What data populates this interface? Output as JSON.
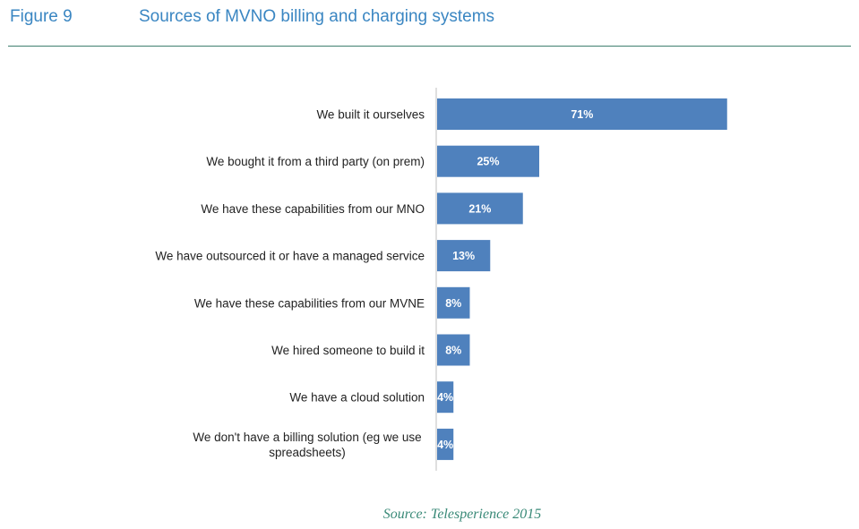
{
  "header": {
    "figure_label": "Figure 9",
    "title": "Sources of MVNO billing and charging systems"
  },
  "chart_data": {
    "type": "bar",
    "orientation": "horizontal",
    "title": "Sources of MVNO billing and charging systems",
    "categories": [
      "We built it ourselves",
      "We bought it from a third party (on prem)",
      "We have these capabilities from our MNO",
      "We have outsourced it or have a managed service",
      "We have these capabilities from our MVNE",
      "We hired someone to build it",
      "We have a cloud solution",
      "We don't have a billing solution (eg we use spreadsheets)"
    ],
    "category_lines": [
      [
        "We built it ourselves"
      ],
      [
        "We bought it from a third party (on prem)"
      ],
      [
        "We have these capabilities from our MNO"
      ],
      [
        "We have outsourced it or have a managed service"
      ],
      [
        "We have these capabilities from our MVNE"
      ],
      [
        "We hired someone to build it"
      ],
      [
        "We have a cloud solution"
      ],
      [
        "We don't have a billing solution (eg we use",
        "spreadsheets)"
      ]
    ],
    "values": [
      71,
      25,
      21,
      13,
      8,
      8,
      4,
      4
    ],
    "data_labels": [
      "71%",
      "25%",
      "21%",
      "13%",
      "8%",
      "8%",
      "4%",
      "4%"
    ],
    "unit": "%",
    "xlim": [
      0,
      100
    ],
    "grid": false,
    "bar_color": "#4f81bd",
    "axis_color": "#bfbfbf"
  },
  "source": "Source: Telesperience 2015"
}
